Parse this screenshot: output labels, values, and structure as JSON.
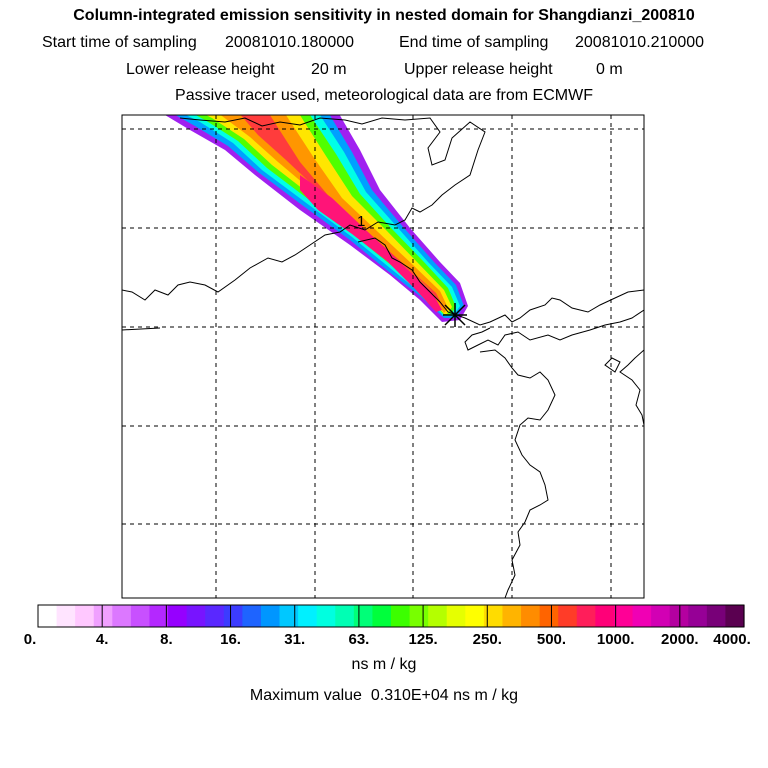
{
  "title": "Column-integrated emission sensitivity in nested domain for Shangdianzi_200810",
  "start_label": "Start time of sampling",
  "start_value": "20081010.180000",
  "end_label": "End time of sampling",
  "end_value": "20081010.210000",
  "lower_label": "Lower release height",
  "lower_value": "20 m",
  "upper_label": "Upper release height",
  "upper_value": "0 m",
  "note": "Passive tracer used, meteorological data are from ECMWF",
  "chart_data": {
    "type": "heatmap",
    "title": "Column-integrated emission sensitivity in nested domain for Shangdianzi_200810",
    "colorbar": {
      "ticks": [
        "0.",
        "4.",
        "8.",
        "16.",
        "31.",
        "63.",
        "125.",
        "250.",
        "500.",
        "1000.",
        "2000.",
        "4000."
      ],
      "units": "ns m / kg",
      "colors": [
        "#ffffff",
        "#ffe4ff",
        "#ffc8ff",
        "#f0a0ff",
        "#dc78ff",
        "#c850ff",
        "#b428ff",
        "#9600ff",
        "#7814ff",
        "#5a28ff",
        "#3c3cff",
        "#1e64ff",
        "#0096ff",
        "#00c8ff",
        "#00f0ff",
        "#00ffe0",
        "#00ffb4",
        "#00ff78",
        "#00ff3c",
        "#3cff00",
        "#78ff00",
        "#b4ff00",
        "#e6ff00",
        "#ffff00",
        "#ffdc00",
        "#ffb400",
        "#ff8c00",
        "#ff6400",
        "#ff3c28",
        "#ff1e5a",
        "#ff0078",
        "#ff0096",
        "#f000b4",
        "#d200b4",
        "#b400a0",
        "#960096",
        "#780078",
        "#5a0050"
      ]
    },
    "max_value_label": "Maximum value",
    "max_value": "0.310E+04",
    "max_units": "ns m / kg",
    "receptor": "Shangdianzi",
    "annotations": [
      "1"
    ]
  }
}
